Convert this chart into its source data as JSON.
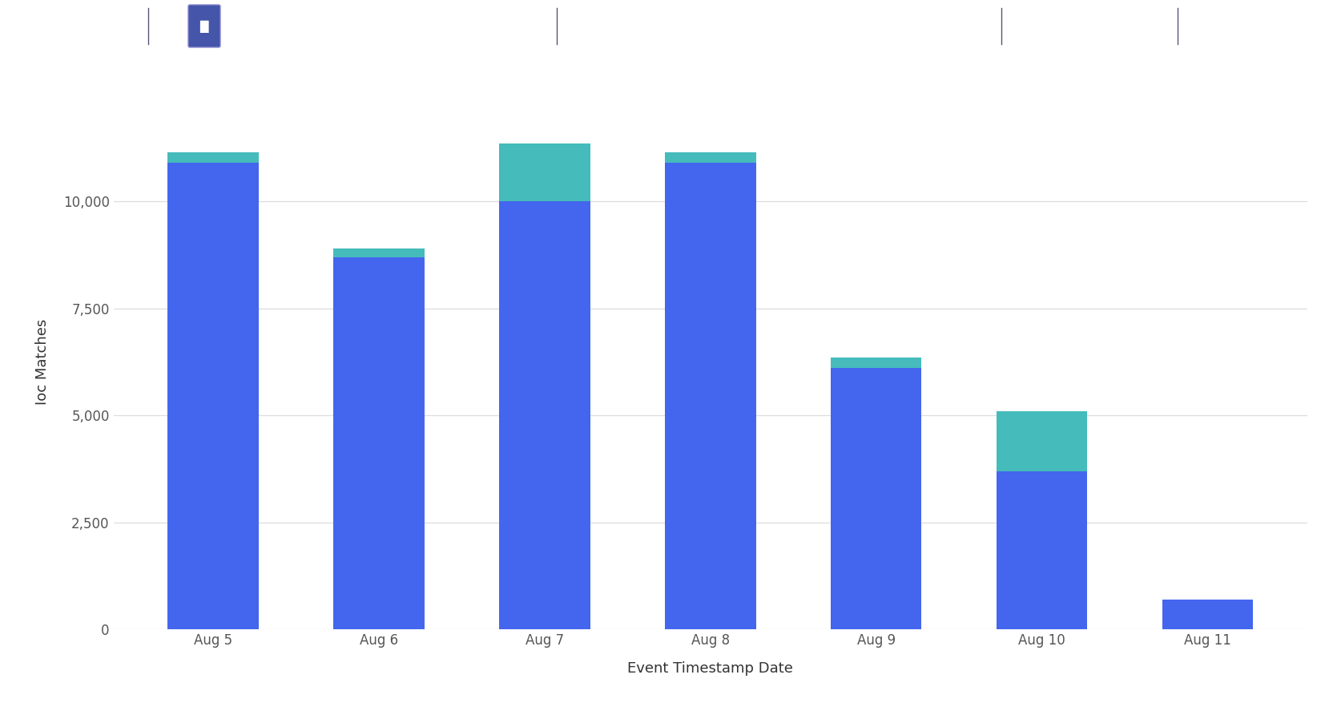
{
  "categories": [
    "Aug 5",
    "Aug 6",
    "Aug 7",
    "Aug 8",
    "Aug 9",
    "Aug 10",
    "Aug 11"
  ],
  "blue_values": [
    10900,
    8700,
    10000,
    10900,
    6100,
    3700,
    700
  ],
  "teal_values": [
    250,
    200,
    1350,
    250,
    250,
    1400,
    0
  ],
  "blue_color": "#4466EE",
  "teal_color": "#45BBBB",
  "background_color": "#FFFFFF",
  "grid_color": "#DDDDDD",
  "xlabel": "Event Timestamp Date",
  "ylabel": "Ioc Matches",
  "ylim": [
    0,
    12500
  ],
  "yticks": [
    0,
    2500,
    5000,
    7500,
    10000
  ],
  "bar_width": 0.55,
  "toolbar_bg": "#1C1C2E",
  "xlabel_fontsize": 13,
  "ylabel_fontsize": 13,
  "tick_fontsize": 12
}
